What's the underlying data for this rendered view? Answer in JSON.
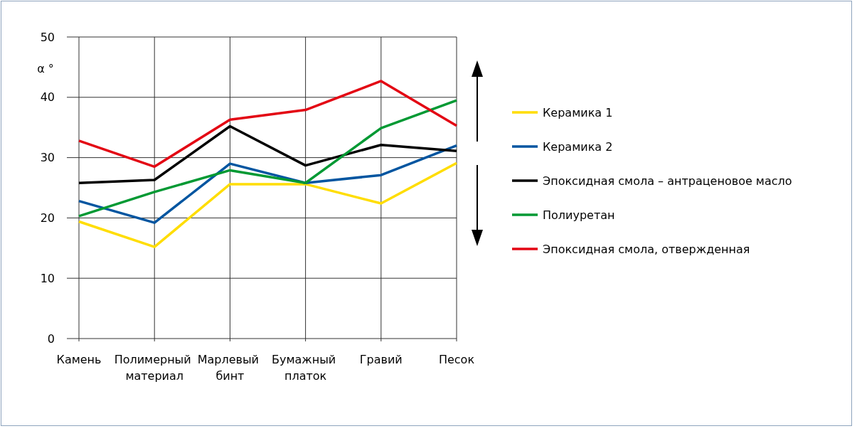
{
  "chart_data": {
    "type": "line",
    "ylabel": "α °",
    "categories": [
      "Камень",
      "Полимерный материал",
      "Марлевый бинт",
      "Бумажный платок",
      "Гравий",
      "Песок"
    ],
    "ylim": [
      0,
      50
    ],
    "yticks": [
      0,
      10,
      20,
      30,
      40,
      50
    ],
    "grid": true,
    "legend": "right",
    "series": [
      {
        "name": "Керамика 1",
        "color": "#ffdd00",
        "values": [
          19.4,
          15.2,
          25.6,
          25.6,
          22.4,
          29.1
        ]
      },
      {
        "name": "Керамика 2",
        "color": "#0055a0",
        "values": [
          22.8,
          19.2,
          29.0,
          25.8,
          27.1,
          32.0
        ]
      },
      {
        "name": "Эпоксидная смола – антраценовое масло",
        "color": "#000000",
        "values": [
          25.8,
          26.3,
          35.2,
          28.7,
          32.1,
          31.1
        ]
      },
      {
        "name": "Полиуретан",
        "color": "#009933",
        "values": [
          20.3,
          24.3,
          27.9,
          25.8,
          34.9,
          39.5
        ]
      },
      {
        "name": "Эпоксидная смола, отвержденная",
        "color": "#e30613",
        "values": [
          32.8,
          28.5,
          36.3,
          37.9,
          42.7,
          35.3
        ]
      }
    ]
  }
}
